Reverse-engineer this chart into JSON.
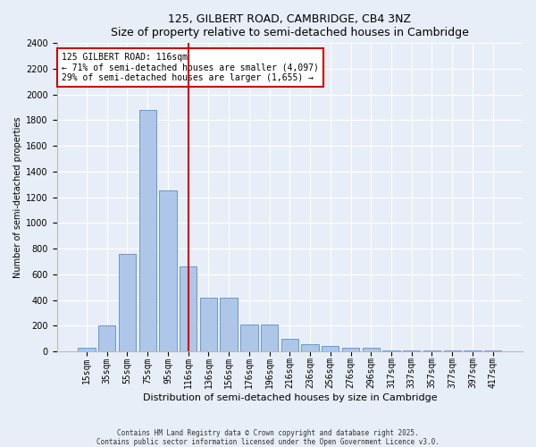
{
  "title": "125, GILBERT ROAD, CAMBRIDGE, CB4 3NZ",
  "subtitle": "Size of property relative to semi-detached houses in Cambridge",
  "xlabel": "Distribution of semi-detached houses by size in Cambridge",
  "ylabel": "Number of semi-detached properties",
  "categories": [
    "15sqm",
    "35sqm",
    "55sqm",
    "75sqm",
    "95sqm",
    "116sqm",
    "136sqm",
    "156sqm",
    "176sqm",
    "196sqm",
    "216sqm",
    "236sqm",
    "256sqm",
    "276sqm",
    "296sqm",
    "317sqm",
    "337sqm",
    "357sqm",
    "377sqm",
    "397sqm",
    "417sqm"
  ],
  "values": [
    30,
    200,
    760,
    1880,
    1250,
    660,
    420,
    420,
    210,
    210,
    100,
    55,
    40,
    25,
    25,
    10,
    10,
    10,
    10,
    5,
    5
  ],
  "bar_color": "#aec6e8",
  "bar_edge_color": "#5a8fc2",
  "vline_x": 5,
  "vline_color": "#cc0000",
  "annotation_text": "125 GILBERT ROAD: 116sqm\n← 71% of semi-detached houses are smaller (4,097)\n29% of semi-detached houses are larger (1,655) →",
  "annotation_box_color": "#ffffff",
  "annotation_box_edge": "#cc0000",
  "ylim": [
    0,
    2400
  ],
  "yticks": [
    0,
    200,
    400,
    600,
    800,
    1000,
    1200,
    1400,
    1600,
    1800,
    2000,
    2200,
    2400
  ],
  "background_color": "#e8eef7",
  "footer_line1": "Contains HM Land Registry data © Crown copyright and database right 2025.",
  "footer_line2": "Contains public sector information licensed under the Open Government Licence v3.0.",
  "title_fontsize": 9,
  "subtitle_fontsize": 8,
  "xlabel_fontsize": 8,
  "ylabel_fontsize": 7,
  "tick_fontsize": 7,
  "annotation_fontsize": 7,
  "footer_fontsize": 5.5
}
